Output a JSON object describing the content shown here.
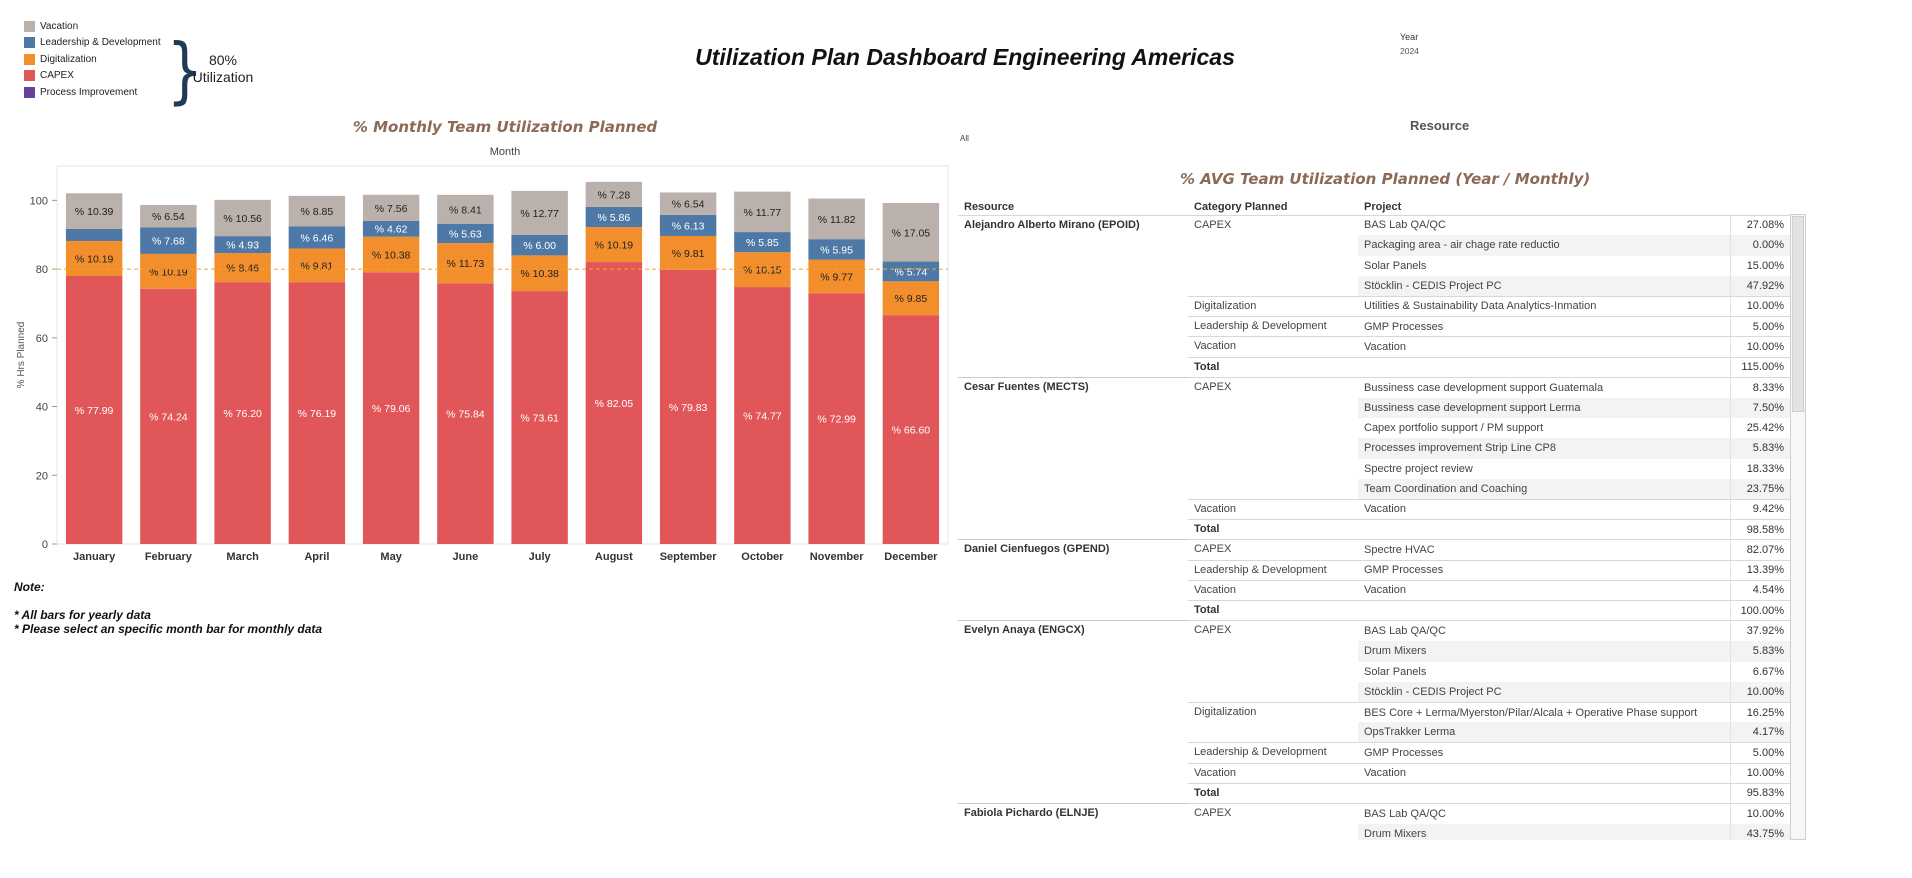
{
  "header": {
    "title": "Utilization Plan Dashboard Engineering Americas",
    "year_label": "Year",
    "year_value": "2024",
    "util_line1": "80%",
    "util_line2": "Utilization"
  },
  "legend": [
    {
      "label": "Vacation",
      "color": "#bab0ac"
    },
    {
      "label": "Leadership & Development",
      "color": "#4e79a7"
    },
    {
      "label": "Digitalization",
      "color": "#f28e2b"
    },
    {
      "label": "CAPEX",
      "color": "#e15759"
    },
    {
      "label": "Process Improvement",
      "color": "#6b3fa0"
    }
  ],
  "chart_title": "% Monthly Team Utilization Planned",
  "chart_data": {
    "type": "bar",
    "stacked": true,
    "xlabel": "Month",
    "ylabel": "% Hrs Planned",
    "ylim": [
      0,
      110
    ],
    "yticks": [
      0,
      20,
      40,
      60,
      80,
      100
    ],
    "reference_line": 80,
    "categories": [
      "January",
      "February",
      "March",
      "April",
      "May",
      "June",
      "July",
      "August",
      "September",
      "October",
      "November",
      "December"
    ],
    "series": [
      {
        "name": "CAPEX",
        "color": "#e15759",
        "values": [
          77.99,
          74.24,
          76.2,
          76.19,
          79.06,
          75.84,
          73.61,
          82.05,
          79.83,
          74.77,
          72.99,
          66.6
        ],
        "labels": [
          "% 77.99",
          "% 74.24",
          "% 76.20",
          "% 76.19",
          "% 79.06",
          "% 75.84",
          "% 73.61",
          "% 82.05",
          "% 79.83",
          "% 74.77",
          "% 72.99",
          "% 66.60"
        ]
      },
      {
        "name": "Digitalization",
        "color": "#f28e2b",
        "values": [
          10.19,
          10.19,
          8.46,
          9.81,
          10.38,
          11.73,
          10.38,
          10.19,
          9.81,
          10.15,
          9.77,
          9.85
        ],
        "labels": [
          "% 10.19",
          "% 10.19",
          "% 8.46",
          "% 9.81",
          "% 10.38",
          "% 11.73",
          "% 10.38",
          "% 10.19",
          "% 9.81",
          "% 10.15",
          "% 9.77",
          "% 9.85"
        ]
      },
      {
        "name": "Leadership & Development",
        "color": "#4e79a7",
        "values": [
          3.5,
          7.68,
          4.93,
          6.46,
          4.62,
          5.63,
          6.0,
          5.86,
          6.13,
          5.85,
          5.95,
          5.74
        ],
        "labels": [
          "",
          "% 7.68",
          "% 4.93",
          "% 6.46",
          "% 4.62",
          "% 5.63",
          "% 6.00",
          "% 5.86",
          "% 6.13",
          "% 5.85",
          "% 5.95",
          "% 5.74"
        ]
      },
      {
        "name": "Vacation",
        "color": "#bab0ac",
        "values": [
          10.39,
          6.54,
          10.56,
          8.85,
          7.56,
          8.41,
          12.77,
          7.28,
          6.54,
          11.77,
          11.82,
          17.05
        ],
        "labels": [
          "% 10.39",
          "% 6.54",
          "% 10.56",
          "% 8.85",
          "% 7.56",
          "% 8.41",
          "% 12.77",
          "% 7.28",
          "% 6.54",
          "% 11.77",
          "% 11.82",
          "% 17.05"
        ]
      }
    ]
  },
  "note": {
    "title": "Note:",
    "line1": "*  All bars for yearly data",
    "line2": "*  Please select an specific month bar for monthly data"
  },
  "filter_all": "All",
  "resource_title": "Resource",
  "table_title": "% AVG Team Utilization Planned (Year / Monthly)",
  "table": {
    "headers": [
      "Resource",
      "Category Planned",
      "Project",
      ""
    ],
    "rows": [
      {
        "res": "Alejandro Alberto Mirano (EPOID)",
        "cat": "CAPEX",
        "proj": "BAS Lab QA/QC",
        "val": "27.08%"
      },
      {
        "res": "",
        "cat": "",
        "proj": "Packaging area - air chage rate reductio",
        "val": "0.00%"
      },
      {
        "res": "",
        "cat": "",
        "proj": "Solar Panels",
        "val": "15.00%"
      },
      {
        "res": "",
        "cat": "",
        "proj": "Stöcklin - CEDIS Project PC",
        "val": "47.92%"
      },
      {
        "res": "",
        "cat": "Digitalization",
        "proj": "Utilities & Sustainability Data Analytics-Inmation",
        "val": "10.00%"
      },
      {
        "res": "",
        "cat": "Leadership & Development",
        "proj": "GMP Processes",
        "val": "5.00%"
      },
      {
        "res": "",
        "cat": "Vacation",
        "proj": "Vacation",
        "val": "10.00%"
      },
      {
        "res": "",
        "cat": "Total",
        "proj": "",
        "val": "115.00%",
        "total": true
      },
      {
        "res": "Cesar Fuentes (MECTS)",
        "cat": "CAPEX",
        "proj": "Bussiness case development support Guatemala",
        "val": "8.33%"
      },
      {
        "res": "",
        "cat": "",
        "proj": "Bussiness case development support Lerma",
        "val": "7.50%"
      },
      {
        "res": "",
        "cat": "",
        "proj": "Capex portfolio support / PM support",
        "val": "25.42%"
      },
      {
        "res": "",
        "cat": "",
        "proj": "Processes improvement Strip Line CP8",
        "val": "5.83%"
      },
      {
        "res": "",
        "cat": "",
        "proj": "Spectre project review",
        "val": "18.33%"
      },
      {
        "res": "",
        "cat": "",
        "proj": "Team Coordination and Coaching",
        "val": "23.75%"
      },
      {
        "res": "",
        "cat": "Vacation",
        "proj": "Vacation",
        "val": "9.42%"
      },
      {
        "res": "",
        "cat": "Total",
        "proj": "",
        "val": "98.58%",
        "total": true
      },
      {
        "res": "Daniel Cienfuegos (GPEND)",
        "cat": "CAPEX",
        "proj": "Spectre HVAC",
        "val": "82.07%"
      },
      {
        "res": "",
        "cat": "Leadership & Development",
        "proj": "GMP Processes",
        "val": "13.39%"
      },
      {
        "res": "",
        "cat": "Vacation",
        "proj": "Vacation",
        "val": "4.54%"
      },
      {
        "res": "",
        "cat": "Total",
        "proj": "",
        "val": "100.00%",
        "total": true
      },
      {
        "res": "Evelyn Anaya (ENGCX)",
        "cat": "CAPEX",
        "proj": "BAS Lab QA/QC",
        "val": "37.92%"
      },
      {
        "res": "",
        "cat": "",
        "proj": "Drum Mixers",
        "val": "5.83%"
      },
      {
        "res": "",
        "cat": "",
        "proj": "Solar Panels",
        "val": "6.67%"
      },
      {
        "res": "",
        "cat": "",
        "proj": "Stöcklin - CEDIS Project PC",
        "val": "10.00%"
      },
      {
        "res": "",
        "cat": "Digitalization",
        "proj": "BES Core + Lerma/Myerston/Pilar/Alcala + Operative Phase support",
        "val": "16.25%"
      },
      {
        "res": "",
        "cat": "",
        "proj": "OpsTrakker Lerma",
        "val": "4.17%"
      },
      {
        "res": "",
        "cat": "Leadership & Development",
        "proj": "GMP Processes",
        "val": "5.00%"
      },
      {
        "res": "",
        "cat": "Vacation",
        "proj": "Vacation",
        "val": "10.00%"
      },
      {
        "res": "",
        "cat": "Total",
        "proj": "",
        "val": "95.83%",
        "total": true
      },
      {
        "res": "Fabiola Pichardo (ELNJE)",
        "cat": "CAPEX",
        "proj": "BAS Lab QA/QC",
        "val": "10.00%"
      },
      {
        "res": "",
        "cat": "",
        "proj": "Drum Mixers",
        "val": "43.75%"
      }
    ]
  }
}
